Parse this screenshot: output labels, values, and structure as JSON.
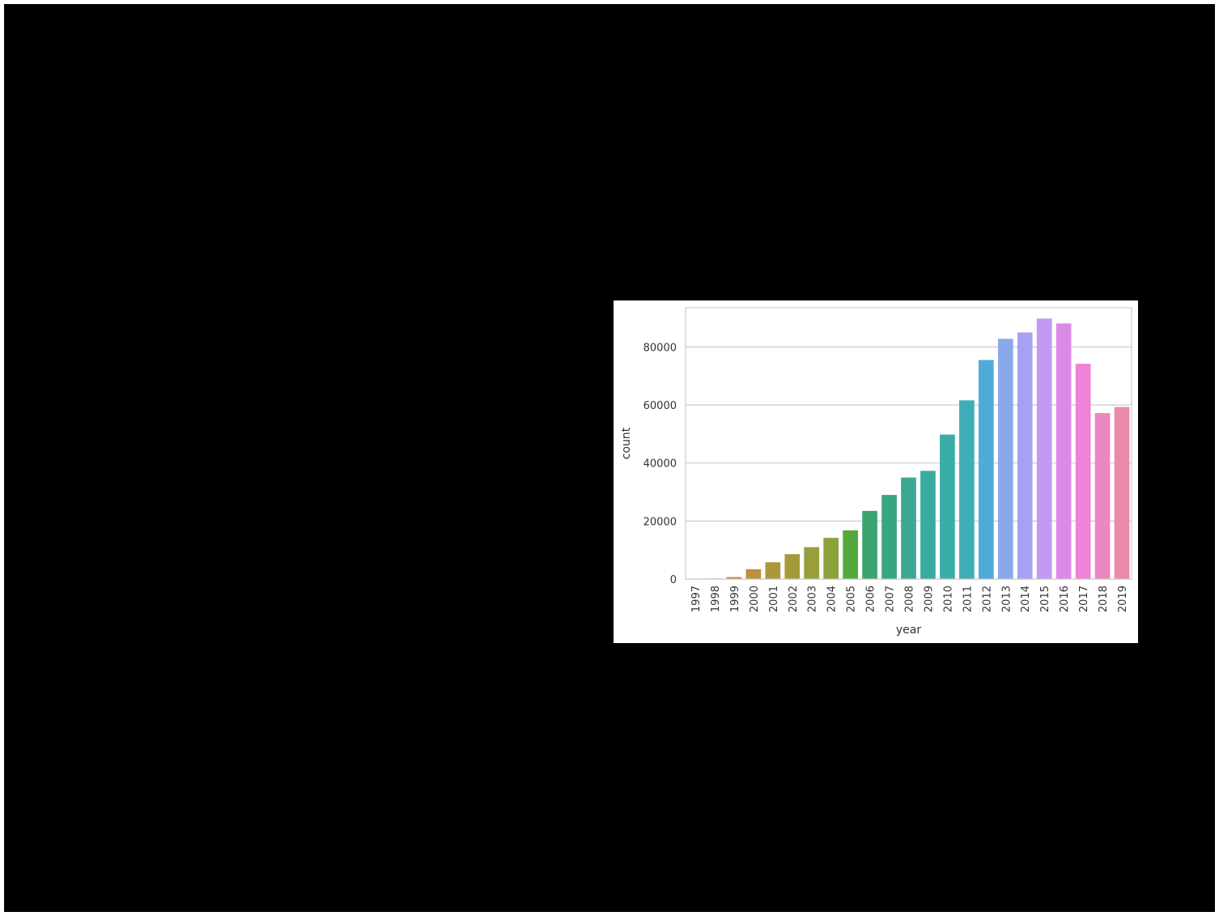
{
  "chart_data": {
    "type": "bar",
    "xlabel": "year",
    "ylabel": "count",
    "categories": [
      "1997",
      "1998",
      "1999",
      "2000",
      "2001",
      "2002",
      "2003",
      "2004",
      "2005",
      "2006",
      "2007",
      "2008",
      "2009",
      "2010",
      "2011",
      "2012",
      "2013",
      "2014",
      "2015",
      "2016",
      "2017",
      "2018",
      "2019"
    ],
    "values": [
      60,
      200,
      700,
      3400,
      5800,
      8600,
      11000,
      14200,
      16800,
      23500,
      29000,
      35000,
      37300,
      49800,
      61600,
      75500,
      82800,
      85000,
      89800,
      88100,
      74200,
      57200,
      59300
    ],
    "ylim": [
      0,
      93500
    ],
    "yticks": [
      0,
      20000,
      40000,
      60000,
      80000
    ],
    "grid": true,
    "legend": "none",
    "colors": [
      "#e8838d",
      "#d4885a",
      "#c48b43",
      "#b99239",
      "#ae9739",
      "#a39b3a",
      "#979e3a",
      "#89a23a",
      "#55a83a",
      "#3ba370",
      "#39a683",
      "#3aa893",
      "#3aaba1",
      "#3bada9",
      "#3daeb8",
      "#4dacd9",
      "#8aa9e8",
      "#a5a2f1",
      "#c29af4",
      "#dc8ae8",
      "#ee82d6",
      "#ed86c1",
      "#e88aa8"
    ]
  }
}
